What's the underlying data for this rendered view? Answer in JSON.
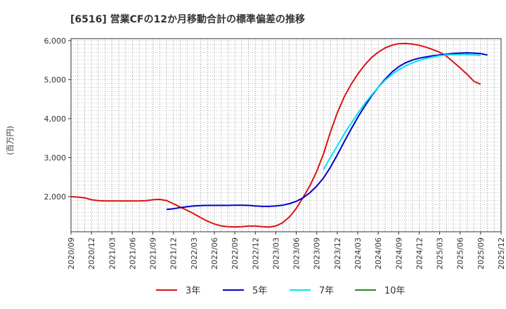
{
  "chart_data": {
    "type": "line",
    "title": "[6516]  営業CFの12か月移動合計の標準偏差の推移",
    "ylabel": "(百万円)",
    "xlabel": "",
    "ylim": [
      1100,
      6050
    ],
    "yticks": [
      2000,
      3000,
      4000,
      5000,
      6000
    ],
    "ytick_labels": [
      "2,000",
      "3,000",
      "4,000",
      "5,000",
      "6,000"
    ],
    "x_start": "2020-09",
    "x_end": "2025-12",
    "xtick_labels": [
      "2020/09",
      "2020/12",
      "2021/03",
      "2021/06",
      "2021/09",
      "2021/12",
      "2022/03",
      "2022/06",
      "2022/09",
      "2022/12",
      "2023/03",
      "2023/06",
      "2023/09",
      "2023/12",
      "2024/03",
      "2024/06",
      "2024/09",
      "2024/12",
      "2025/03",
      "2025/06",
      "2025/09",
      "2025/12"
    ],
    "grid": true,
    "legend_position": "bottom",
    "series": [
      {
        "name": "3年",
        "color": "#dd1111",
        "start": "2020-09",
        "values": [
          2000,
          1990,
          1970,
          1920,
          1895,
          1890,
          1890,
          1890,
          1890,
          1890,
          1890,
          1895,
          1920,
          1930,
          1900,
          1820,
          1730,
          1650,
          1560,
          1460,
          1370,
          1300,
          1250,
          1230,
          1225,
          1230,
          1245,
          1245,
          1230,
          1220,
          1245,
          1330,
          1480,
          1700,
          1980,
          2280,
          2650,
          3100,
          3650,
          4150,
          4550,
          4870,
          5140,
          5370,
          5560,
          5700,
          5810,
          5880,
          5920,
          5925,
          5910,
          5880,
          5830,
          5770,
          5700,
          5600,
          5450,
          5300,
          5140,
          4960,
          4880
        ]
      },
      {
        "name": "5年",
        "color": "#0000cc",
        "start": "2021-11",
        "values": [
          1670,
          1690,
          1720,
          1740,
          1760,
          1770,
          1775,
          1775,
          1775,
          1775,
          1780,
          1780,
          1775,
          1760,
          1750,
          1750,
          1760,
          1780,
          1820,
          1880,
          1970,
          2100,
          2270,
          2480,
          2750,
          3070,
          3400,
          3720,
          4030,
          4310,
          4570,
          4800,
          5010,
          5190,
          5330,
          5430,
          5500,
          5550,
          5580,
          5610,
          5630,
          5650,
          5670,
          5680,
          5685,
          5680,
          5665,
          5630
        ]
      },
      {
        "name": "7年",
        "color": "#00e5ee",
        "start": "2023-10",
        "values": [
          2700,
          3000,
          3300,
          3600,
          3870,
          4130,
          4380,
          4600,
          4800,
          4980,
          5130,
          5250,
          5350,
          5430,
          5490,
          5540,
          5580,
          5610,
          5630,
          5640,
          5640,
          5640,
          5630,
          5620
        ]
      },
      {
        "name": "10年",
        "color": "#228b22",
        "start": null,
        "values": []
      }
    ]
  }
}
